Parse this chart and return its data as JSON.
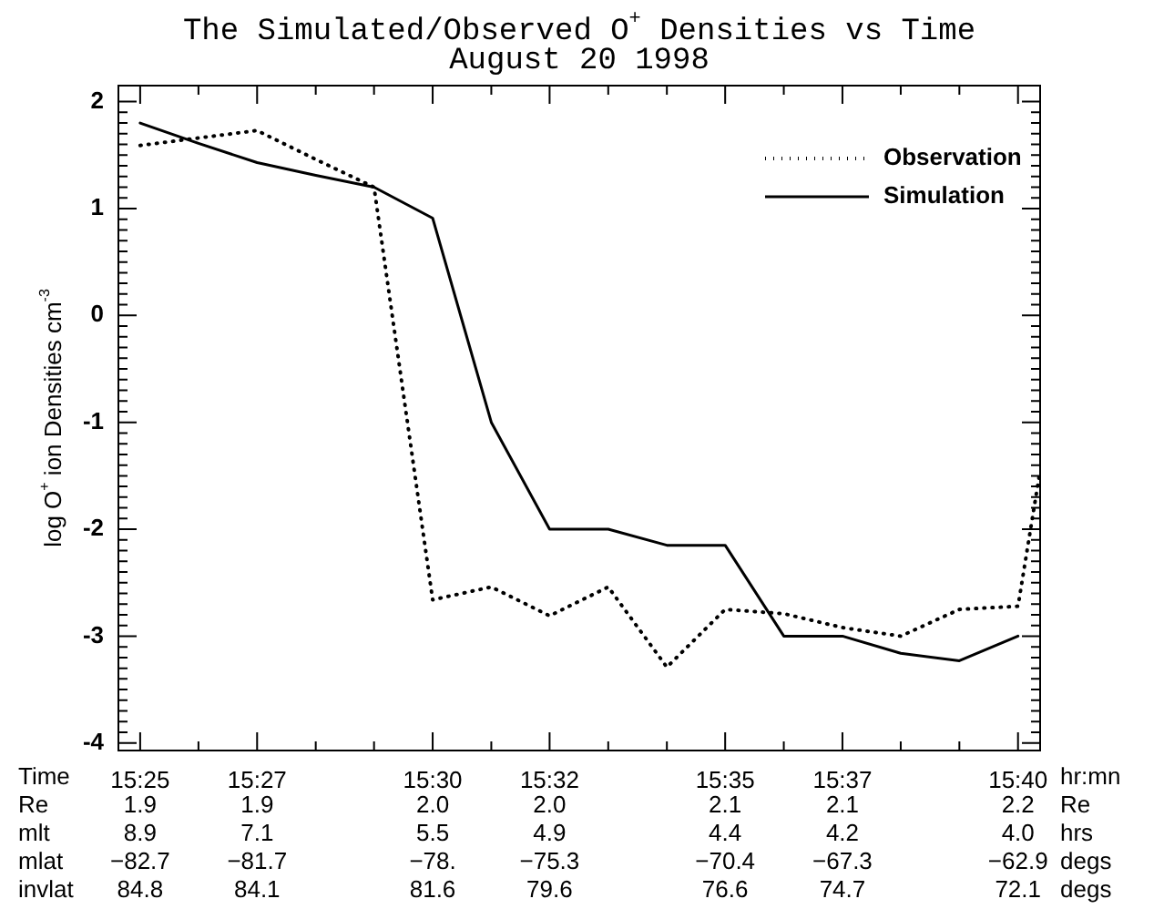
{
  "chart_data": {
    "type": "line",
    "title": "The Simulated/Observed O$^{+}$ Densities vs Time",
    "subtitle": "August 20 1998",
    "ylabel": "log O$^{+}$ ion Densities cm$^{-3}$",
    "series": [
      {
        "name": "Observation",
        "color": "#000000",
        "line_style": "dotted",
        "x": [
          15.4167,
          15.4333,
          15.45,
          15.4667,
          15.4833,
          15.5,
          15.5167,
          15.5333,
          15.55,
          15.5667,
          15.5833,
          15.6,
          15.6167,
          15.6333,
          15.65,
          15.6667,
          15.673
        ],
        "values": [
          1.59,
          1.66,
          1.73,
          1.46,
          1.2,
          -2.66,
          -2.54,
          -2.81,
          -2.54,
          -3.29,
          -2.75,
          -2.79,
          -2.92,
          -3.0,
          -2.75,
          -2.72,
          -1.45
        ]
      },
      {
        "name": "Simulation",
        "color": "#000000",
        "line_style": "solid",
        "x": [
          15.4167,
          15.4333,
          15.45,
          15.4667,
          15.4833,
          15.5,
          15.5167,
          15.5333,
          15.55,
          15.5667,
          15.5833,
          15.6,
          15.6167,
          15.6333,
          15.65,
          15.6667
        ],
        "values": [
          1.8,
          1.61,
          1.43,
          1.31,
          1.2,
          0.91,
          -1.0,
          -2.0,
          -2.0,
          -2.15,
          -2.15,
          -3.0,
          -3.0,
          -3.16,
          -3.23,
          -3.0
        ]
      }
    ],
    "marker": "none",
    "legend": "top right",
    "grid": false,
    "xlim": [
      15.4105,
      15.673
    ],
    "xticks": [
      {
        "value": 15.4167,
        "label": "15:25"
      },
      {
        "value": 15.4333,
        "label": null
      },
      {
        "value": 15.45,
        "label": "15:27"
      },
      {
        "value": 15.4667,
        "label": null
      },
      {
        "value": 15.4833,
        "label": null
      },
      {
        "value": 15.5,
        "label": "15:30"
      },
      {
        "value": 15.5167,
        "label": null
      },
      {
        "value": 15.5333,
        "label": "15:32"
      },
      {
        "value": 15.55,
        "label": null
      },
      {
        "value": 15.5667,
        "label": null
      },
      {
        "value": 15.5833,
        "label": "15:35"
      },
      {
        "value": 15.6,
        "label": null
      },
      {
        "value": 15.6167,
        "label": "15:37"
      },
      {
        "value": 15.6333,
        "label": null
      },
      {
        "value": 15.65,
        "label": null
      },
      {
        "value": 15.6667,
        "label": "15:40"
      }
    ],
    "ylim": [
      -4.07,
      2.15
    ],
    "yticks": [
      -4,
      {
        "value": -3.9,
        "label": null
      },
      {
        "value": -3.8,
        "label": null
      },
      {
        "value": -3.7,
        "label": null
      },
      {
        "value": -3.6,
        "label": null
      },
      {
        "value": -3.5,
        "label": null
      },
      {
        "value": -3.4,
        "label": null
      },
      {
        "value": -3.3,
        "label": null
      },
      {
        "value": -3.2,
        "label": null
      },
      {
        "value": -3.1,
        "label": null
      },
      -3,
      {
        "value": -2.9,
        "label": null
      },
      {
        "value": -2.8,
        "label": null
      },
      {
        "value": -2.7,
        "label": null
      },
      {
        "value": -2.6,
        "label": null
      },
      {
        "value": -2.5,
        "label": null
      },
      {
        "value": -2.4,
        "label": null
      },
      {
        "value": -2.3,
        "label": null
      },
      {
        "value": -2.2,
        "label": null
      },
      {
        "value": -2.1,
        "label": null
      },
      -2,
      {
        "value": -1.9,
        "label": null
      },
      {
        "value": -1.8,
        "label": null
      },
      {
        "value": -1.7,
        "label": null
      },
      {
        "value": -1.6,
        "label": null
      },
      {
        "value": -1.5,
        "label": null
      },
      {
        "value": -1.4,
        "label": null
      },
      {
        "value": -1.3,
        "label": null
      },
      {
        "value": -1.2,
        "label": null
      },
      {
        "value": -1.1,
        "label": null
      },
      -1,
      {
        "value": -0.9,
        "label": null
      },
      {
        "value": -0.8,
        "label": null
      },
      {
        "value": -0.7,
        "label": null
      },
      {
        "value": -0.6,
        "label": null
      },
      {
        "value": -0.5,
        "label": null
      },
      {
        "value": -0.4,
        "label": null
      },
      {
        "value": -0.3,
        "label": null
      },
      {
        "value": -0.2,
        "label": null
      },
      {
        "value": -0.1,
        "label": null
      },
      0,
      {
        "value": 0.1,
        "label": null
      },
      {
        "value": 0.2,
        "label": null
      },
      {
        "value": 0.3,
        "label": null
      },
      {
        "value": 0.4,
        "label": null
      },
      {
        "value": 0.5,
        "label": null
      },
      {
        "value": 0.6,
        "label": null
      },
      {
        "value": 0.7,
        "label": null
      },
      {
        "value": 0.8,
        "label": null
      },
      {
        "value": 0.9,
        "label": null
      },
      1,
      {
        "value": 1.1,
        "label": null
      },
      {
        "value": 1.2,
        "label": null
      },
      {
        "value": 1.3,
        "label": null
      },
      {
        "value": 1.4,
        "label": null
      },
      {
        "value": 1.5,
        "label": null
      },
      {
        "value": 1.6,
        "label": null
      },
      {
        "value": 1.7,
        "label": null
      },
      {
        "value": 1.8,
        "label": null
      },
      {
        "value": 1.9,
        "label": null
      },
      2
    ],
    "annotations": [
      "Time hr:mn",
      "Re 1.9 1.9 2.0 2.0 2.1 2.1 2.2 Re",
      "mlt 8.9 7.1 5.5 4.9 4.4 4.2 4.0 hrs",
      "mlat −82.7 −81.7 −78. −75.3 −70.4 −67.3 −62.9 degs",
      "invlat 84.8 84.1 81.6 79.6 76.6 74.7 72.1 degs"
    ]
  }
}
